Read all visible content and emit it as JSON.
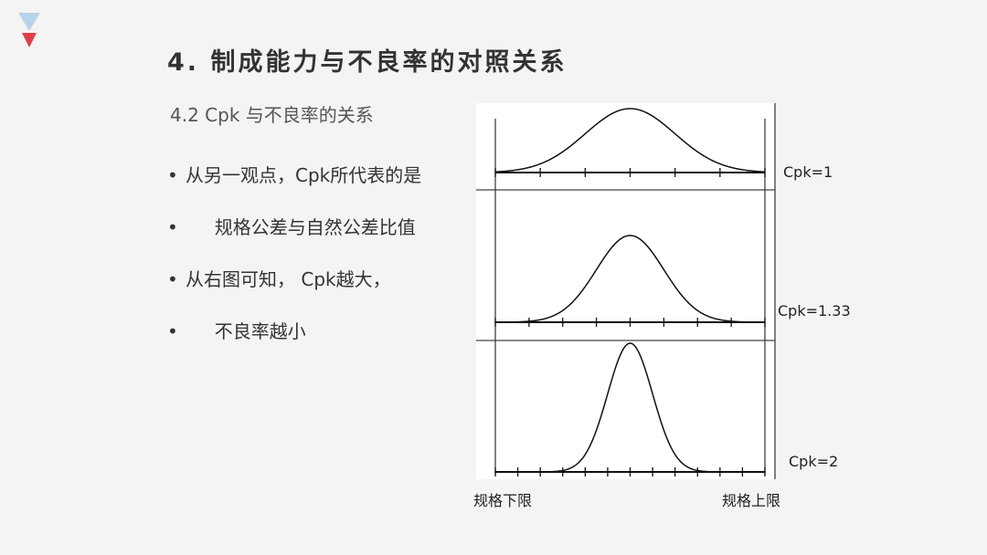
{
  "logo": {
    "colors": {
      "top": "#b9d3ea",
      "bottom": "#e0404a"
    }
  },
  "title": "4.  制成能力与不良率的对照关系",
  "subtitle": "4.2  Cpk 与不良率的关系",
  "bullets": [
    {
      "marker": "•",
      "text": "从另一观点，Cpk所代表的是"
    },
    {
      "marker": "•",
      "text": "     规格公差与自然公差比值"
    },
    {
      "marker": "•",
      "text": "从右图可知， Cpk越大，"
    },
    {
      "marker": "•",
      "text": "     不良率越小"
    }
  ],
  "diagram": {
    "panels": [
      {
        "label": "Cpk=1",
        "sigmas_to_limit": 3
      },
      {
        "label": "Cpk=1.33",
        "sigmas_to_limit": 4
      },
      {
        "label": "Cpk=2",
        "sigmas_to_limit": 6
      }
    ],
    "lower_limit_label": "规格下限",
    "upper_limit_label": "规格上限"
  }
}
